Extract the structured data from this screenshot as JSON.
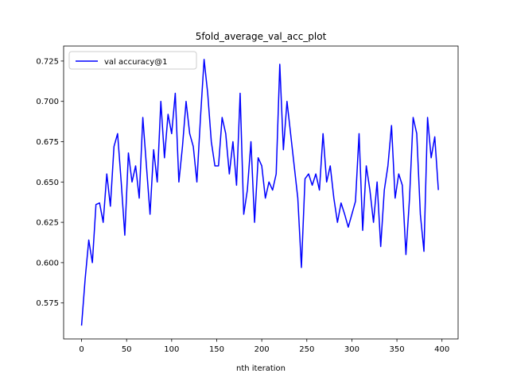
{
  "chart_data": {
    "type": "line",
    "title": "5fold_average_val_acc_plot",
    "xlabel": "nth iteration",
    "x": [
      0,
      4,
      8,
      12,
      16,
      20,
      24,
      28,
      32,
      36,
      40,
      44,
      48,
      52,
      56,
      60,
      64,
      68,
      72,
      76,
      80,
      84,
      88,
      92,
      96,
      100,
      104,
      108,
      112,
      116,
      120,
      124,
      128,
      132,
      136,
      140,
      144,
      148,
      152,
      156,
      160,
      164,
      168,
      172,
      176,
      180,
      184,
      188,
      192,
      196,
      200,
      204,
      208,
      212,
      216,
      220,
      224,
      228,
      232,
      236,
      240,
      244,
      248,
      252,
      256,
      260,
      264,
      268,
      272,
      276,
      280,
      284,
      288,
      292,
      296,
      300,
      304,
      308,
      312,
      316,
      320,
      324,
      328,
      332,
      336,
      340,
      344,
      348,
      352,
      356,
      360,
      364,
      368,
      372,
      376,
      380,
      384,
      388,
      392,
      396
    ],
    "series": [
      {
        "name": "val accuracy@1",
        "color": "#0000ff",
        "values": [
          0.561,
          0.59,
          0.614,
          0.6,
          0.636,
          0.637,
          0.625,
          0.655,
          0.635,
          0.672,
          0.68,
          0.65,
          0.617,
          0.668,
          0.65,
          0.66,
          0.64,
          0.69,
          0.66,
          0.63,
          0.67,
          0.65,
          0.7,
          0.665,
          0.692,
          0.68,
          0.705,
          0.65,
          0.672,
          0.7,
          0.68,
          0.672,
          0.65,
          0.69,
          0.726,
          0.705,
          0.675,
          0.66,
          0.66,
          0.69,
          0.68,
          0.655,
          0.675,
          0.648,
          0.705,
          0.63,
          0.645,
          0.675,
          0.625,
          0.665,
          0.66,
          0.64,
          0.65,
          0.645,
          0.655,
          0.723,
          0.67,
          0.7,
          0.68,
          0.66,
          0.64,
          0.597,
          0.652,
          0.655,
          0.648,
          0.655,
          0.645,
          0.68,
          0.65,
          0.66,
          0.64,
          0.625,
          0.637,
          0.63,
          0.622,
          0.63,
          0.638,
          0.68,
          0.62,
          0.66,
          0.645,
          0.625,
          0.65,
          0.61,
          0.645,
          0.66,
          0.685,
          0.64,
          0.655,
          0.648,
          0.605,
          0.64,
          0.69,
          0.68,
          0.63,
          0.607,
          0.69,
          0.665,
          0.678,
          0.645
        ]
      }
    ],
    "xlim": [
      -19.9,
      417.9
    ],
    "xticks": [
      0,
      50,
      100,
      150,
      200,
      250,
      300,
      350,
      400
    ],
    "ylim": [
      0.5527,
      0.7343
    ],
    "yticks": [
      0.575,
      {
        "value": 0.6,
        "label": "0.600"
      },
      0.625,
      {
        "value": 0.65,
        "label": "0.650"
      },
      0.675,
      {
        "value": 0.7,
        "label": "0.700"
      },
      0.725
    ],
    "legend": "upper left"
  }
}
